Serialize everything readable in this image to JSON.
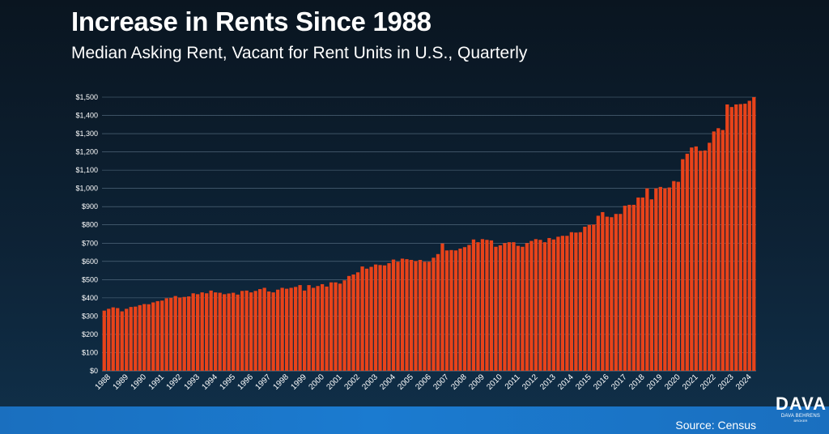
{
  "header": {
    "title": "Increase in Rents Since 1988",
    "subtitle": "Median Asking Rent, Vacant for Rent Units in U.S., Quarterly"
  },
  "footer": {
    "source": "Source: Census",
    "logo_mark": "DAVA",
    "logo_line1": "DAVA BEHRENS",
    "logo_line2": "BROKER"
  },
  "colors": {
    "bar": "#e8431a",
    "gridline": "#5d7488"
  },
  "chart_data": {
    "type": "bar",
    "title": "Increase in Rents Since 1988",
    "subtitle": "Median Asking Rent, Vacant for Rent Units in U.S., Quarterly",
    "ylim": [
      0,
      1500
    ],
    "yticks": [
      0,
      100,
      200,
      300,
      400,
      500,
      600,
      700,
      800,
      900,
      1000,
      1100,
      1200,
      1300,
      1400,
      1500
    ],
    "ytick_labels": [
      "$0",
      "$100",
      "$200",
      "$300",
      "$400",
      "$500",
      "$600",
      "$700",
      "$800",
      "$900",
      "$1,000",
      "$1,100",
      "$1,200",
      "$1,300",
      "$1,400",
      "$1,500"
    ],
    "xtick_labels": [
      "1988",
      "1989",
      "1990",
      "1991",
      "1992",
      "1993",
      "1994",
      "1995",
      "1996",
      "1997",
      "1998",
      "1999",
      "2000",
      "2001",
      "2002",
      "2003",
      "2004",
      "2005",
      "2006",
      "2007",
      "2008",
      "2009",
      "2010",
      "2011",
      "2012",
      "2013",
      "2014",
      "2015",
      "2016",
      "2017",
      "2018",
      "2019",
      "2020",
      "2021",
      "2022",
      "2023",
      "2024"
    ],
    "grid": true,
    "values": [
      330,
      340,
      348,
      344,
      326,
      340,
      350,
      352,
      360,
      366,
      365,
      375,
      382,
      385,
      398,
      400,
      410,
      402,
      405,
      408,
      425,
      420,
      430,
      425,
      440,
      430,
      428,
      420,
      424,
      428,
      418,
      438,
      440,
      430,
      438,
      448,
      455,
      435,
      430,
      445,
      455,
      450,
      455,
      460,
      470,
      440,
      470,
      455,
      465,
      475,
      462,
      485,
      485,
      478,
      496,
      520,
      528,
      540,
      572,
      560,
      570,
      583,
      580,
      578,
      590,
      610,
      598,
      615,
      612,
      608,
      602,
      608,
      598,
      598,
      620,
      640,
      698,
      660,
      662,
      660,
      670,
      678,
      690,
      720,
      705,
      722,
      718,
      715,
      680,
      688,
      700,
      705,
      705,
      685,
      680,
      700,
      712,
      722,
      718,
      705,
      728,
      720,
      735,
      740,
      740,
      760,
      758,
      760,
      790,
      800,
      802,
      850,
      870,
      845,
      842,
      860,
      860,
      905,
      910,
      910,
      950,
      950,
      1000,
      940,
      1000,
      1008,
      1000,
      1005,
      1040,
      1036,
      1160,
      1190,
      1224,
      1230,
      1206,
      1208,
      1250,
      1312,
      1330,
      1320,
      1460,
      1446,
      1460,
      1462,
      1464,
      1480,
      1500
    ]
  }
}
